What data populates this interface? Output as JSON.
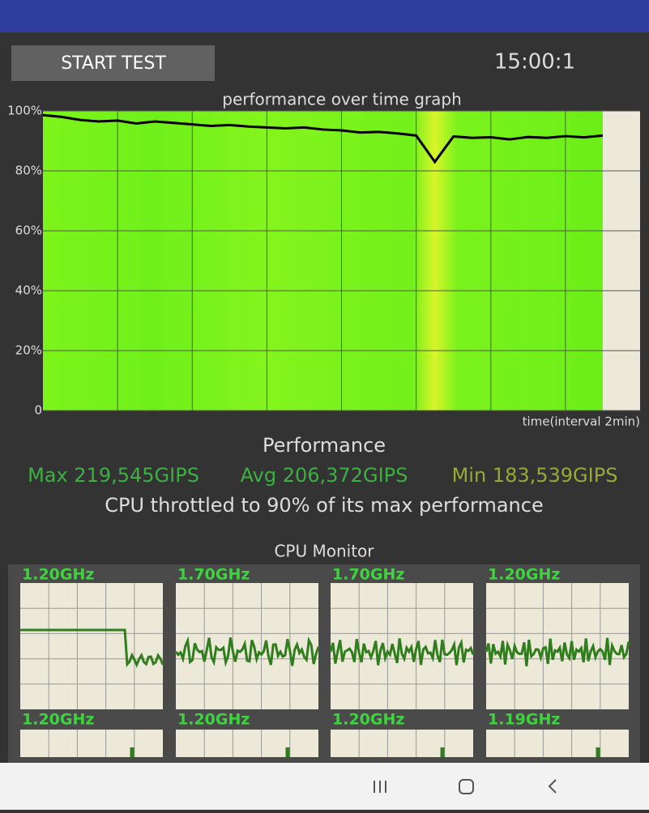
{
  "header": {
    "button": "START TEST",
    "timer": "15:00:1"
  },
  "chart_data": {
    "type": "line",
    "title": "performance over time graph",
    "x_label": "time(interval 2min)",
    "x": [
      0,
      0.5,
      1,
      1.5,
      2,
      2.5,
      3,
      3.5,
      4,
      4.5,
      5,
      5.5,
      6,
      6.5,
      7,
      7.5,
      8,
      8.5,
      9,
      9.5,
      10,
      10.5,
      11,
      11.5,
      12,
      12.5,
      13,
      13.5,
      14,
      14.5,
      15
    ],
    "series": [
      {
        "color": "#000000",
        "values": [
          98.6,
          98,
          97,
          96.5,
          96.8,
          95.8,
          96.5,
          96,
          95.5,
          95,
          95.3,
          94.8,
          94.5,
          94.2,
          94.5,
          93.8,
          93.5,
          92.8,
          93,
          92.5,
          91.8,
          83,
          91.5,
          91,
          91.2,
          90.5,
          91.3,
          91,
          91.6,
          91.2,
          91.8
        ]
      }
    ],
    "xlim": [
      0,
      16
    ],
    "ylim": [
      0,
      100
    ],
    "yticks": [
      {
        "value": 0,
        "label": "0"
      },
      {
        "value": 20,
        "label": "20%"
      },
      {
        "value": 40,
        "label": "40%"
      },
      {
        "value": 60,
        "label": "60%"
      },
      {
        "value": 80,
        "label": "80%"
      },
      {
        "value": 100,
        "label": "100%"
      }
    ],
    "grid": true
  },
  "stats": {
    "heading": "Performance",
    "max": "Max 219,545GIPS",
    "avg": "Avg 206,372GIPS",
    "min": "Min 183,539GIPS",
    "throttle": "CPU throttled to 90% of its max performance"
  },
  "cpu_monitor": {
    "title": "CPU Monitor",
    "cores": [
      "1.20GHz",
      "1.70GHz",
      "1.70GHz",
      "1.20GHz",
      "1.20GHz",
      "1.20GHz",
      "1.20GHz",
      "1.19GHz"
    ]
  }
}
